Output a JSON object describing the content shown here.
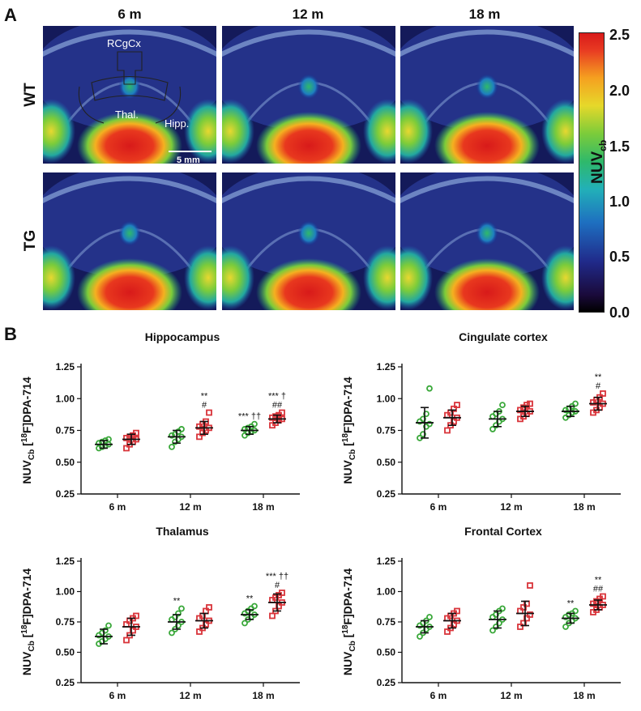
{
  "panel_a": {
    "letter": "A",
    "columns": [
      "6 m",
      "12 m",
      "18 m"
    ],
    "rows": [
      "WT",
      "TG"
    ],
    "annotations": {
      "region_top": "RCgCx",
      "region_left": "Thal.",
      "region_right": "Hipp.",
      "scale": "5 mm"
    },
    "colorbar": {
      "label": "NUV",
      "label_sub": "cb",
      "ticks": [
        "2.5",
        "2.0",
        "1.5",
        "1.0",
        "0.5",
        "0.0"
      ]
    }
  },
  "panel_b": {
    "letter": "B"
  },
  "colors": {
    "wt": "#3aa83a",
    "tg": "#d9343a"
  },
  "chart_data": [
    {
      "type": "scatter",
      "title": "Hippocampus",
      "ylabel": "NUVCb [18F]DPA-714",
      "categories": [
        "6 m",
        "12 m",
        "18 m"
      ],
      "ylim": [
        0.25,
        1.25
      ],
      "yticks": [
        "0.25",
        "0.50",
        "0.75",
        "1.00",
        "1.25"
      ],
      "series": [
        {
          "name": "WT",
          "marker": "circle",
          "means": [
            0.64,
            0.7,
            0.75
          ],
          "sd": [
            0.03,
            0.05,
            0.03
          ],
          "points": [
            [
              0.61,
              0.62,
              0.63,
              0.64,
              0.65,
              0.66,
              0.67,
              0.68
            ],
            [
              0.62,
              0.66,
              0.68,
              0.7,
              0.71,
              0.72,
              0.74,
              0.76
            ],
            [
              0.71,
              0.73,
              0.74,
              0.75,
              0.76,
              0.77,
              0.78,
              0.8
            ]
          ]
        },
        {
          "name": "TG",
          "marker": "square",
          "means": [
            0.68,
            0.77,
            0.84
          ],
          "sd": [
            0.04,
            0.05,
            0.03
          ],
          "points": [
            [
              0.61,
              0.64,
              0.66,
              0.68,
              0.69,
              0.7,
              0.71,
              0.73
            ],
            [
              0.7,
              0.73,
              0.75,
              0.77,
              0.78,
              0.8,
              0.82,
              0.89
            ],
            [
              0.79,
              0.81,
              0.83,
              0.84,
              0.85,
              0.86,
              0.87,
              0.89
            ]
          ]
        }
      ],
      "annotations": [
        {
          "cat": 1,
          "series": 1,
          "text": "**",
          "line": 2
        },
        {
          "cat": 1,
          "series": 1,
          "text": "#",
          "line": 1
        },
        {
          "cat": 2,
          "series": 0,
          "text": "*** ††",
          "line": 1
        },
        {
          "cat": 2,
          "series": 1,
          "text": "*** †",
          "line": 2
        },
        {
          "cat": 2,
          "series": 1,
          "text": "##",
          "line": 1
        }
      ]
    },
    {
      "type": "scatter",
      "title": "Cingulate cortex",
      "ylabel": "NUVCb [18F]DPA-714",
      "categories": [
        "6 m",
        "12 m",
        "18 m"
      ],
      "ylim": [
        0.25,
        1.25
      ],
      "yticks": [
        "0.25",
        "0.50",
        "0.75",
        "1.00",
        "1.25"
      ],
      "series": [
        {
          "name": "WT",
          "marker": "circle",
          "means": [
            0.81,
            0.84,
            0.9
          ],
          "sd": [
            0.12,
            0.06,
            0.04
          ],
          "points": [
            [
              0.69,
              0.72,
              0.78,
              0.8,
              0.82,
              0.84,
              0.88,
              1.08
            ],
            [
              0.76,
              0.79,
              0.82,
              0.84,
              0.86,
              0.88,
              0.9,
              0.95
            ],
            [
              0.85,
              0.87,
              0.89,
              0.9,
              0.91,
              0.92,
              0.94,
              0.96
            ]
          ]
        },
        {
          "name": "TG",
          "marker": "square",
          "means": [
            0.85,
            0.9,
            0.96
          ],
          "sd": [
            0.06,
            0.04,
            0.05
          ],
          "points": [
            [
              0.75,
              0.79,
              0.82,
              0.85,
              0.87,
              0.89,
              0.92,
              0.95
            ],
            [
              0.84,
              0.86,
              0.88,
              0.9,
              0.91,
              0.93,
              0.95,
              0.96
            ],
            [
              0.89,
              0.91,
              0.93,
              0.96,
              0.97,
              0.99,
              1.01,
              1.04
            ]
          ]
        }
      ],
      "annotations": [
        {
          "cat": 2,
          "series": 1,
          "text": "**",
          "line": 2
        },
        {
          "cat": 2,
          "series": 1,
          "text": "#",
          "line": 1
        }
      ]
    },
    {
      "type": "scatter",
      "title": "Thalamus",
      "ylabel": "NUVCb [18F]DPA-714",
      "categories": [
        "6 m",
        "12 m",
        "18 m"
      ],
      "ylim": [
        0.25,
        1.25
      ],
      "yticks": [
        "0.25",
        "0.50",
        "0.75",
        "1.00",
        "1.25"
      ],
      "series": [
        {
          "name": "WT",
          "marker": "circle",
          "means": [
            0.63,
            0.75,
            0.81
          ],
          "sd": [
            0.06,
            0.06,
            0.04
          ],
          "points": [
            [
              0.57,
              0.59,
              0.61,
              0.63,
              0.64,
              0.66,
              0.68,
              0.72
            ],
            [
              0.66,
              0.69,
              0.72,
              0.75,
              0.77,
              0.79,
              0.82,
              0.86
            ],
            [
              0.74,
              0.77,
              0.79,
              0.81,
              0.82,
              0.84,
              0.86,
              0.88
            ]
          ]
        },
        {
          "name": "TG",
          "marker": "square",
          "means": [
            0.71,
            0.76,
            0.91
          ],
          "sd": [
            0.07,
            0.06,
            0.07
          ],
          "points": [
            [
              0.6,
              0.64,
              0.68,
              0.71,
              0.73,
              0.76,
              0.78,
              0.8
            ],
            [
              0.67,
              0.7,
              0.73,
              0.76,
              0.78,
              0.8,
              0.84,
              0.87
            ],
            [
              0.8,
              0.84,
              0.88,
              0.91,
              0.93,
              0.95,
              0.97,
              0.99
            ]
          ]
        }
      ],
      "annotations": [
        {
          "cat": 1,
          "series": 0,
          "text": "**",
          "line": 1
        },
        {
          "cat": 2,
          "series": 0,
          "text": "**",
          "line": 1
        },
        {
          "cat": 2,
          "series": 1,
          "text": "*** ††",
          "line": 2
        },
        {
          "cat": 2,
          "series": 1,
          "text": "#",
          "line": 1
        }
      ]
    },
    {
      "type": "scatter",
      "title": "Frontal Cortex",
      "ylabel": "NUVCb [18F]DPA-714",
      "categories": [
        "6 m",
        "12 m",
        "18 m"
      ],
      "ylim": [
        0.25,
        1.25
      ],
      "yticks": [
        "0.25",
        "0.50",
        "0.75",
        "1.00",
        "1.25"
      ],
      "series": [
        {
          "name": "WT",
          "marker": "circle",
          "means": [
            0.71,
            0.77,
            0.78
          ],
          "sd": [
            0.05,
            0.07,
            0.04
          ],
          "points": [
            [
              0.63,
              0.66,
              0.69,
              0.71,
              0.72,
              0.74,
              0.76,
              0.79
            ],
            [
              0.68,
              0.71,
              0.74,
              0.77,
              0.79,
              0.81,
              0.84,
              0.86
            ],
            [
              0.71,
              0.74,
              0.76,
              0.78,
              0.79,
              0.81,
              0.82,
              0.84
            ]
          ]
        },
        {
          "name": "TG",
          "marker": "square",
          "means": [
            0.76,
            0.82,
            0.89
          ],
          "sd": [
            0.06,
            0.1,
            0.04
          ],
          "points": [
            [
              0.67,
              0.7,
              0.73,
              0.76,
              0.78,
              0.8,
              0.82,
              0.84
            ],
            [
              0.71,
              0.74,
              0.78,
              0.81,
              0.84,
              0.87,
              0.9,
              1.05
            ],
            [
              0.83,
              0.85,
              0.87,
              0.89,
              0.9,
              0.92,
              0.94,
              0.96
            ]
          ]
        }
      ],
      "annotations": [
        {
          "cat": 2,
          "series": 0,
          "text": "**",
          "line": 1
        },
        {
          "cat": 2,
          "series": 1,
          "text": "**",
          "line": 2
        },
        {
          "cat": 2,
          "series": 1,
          "text": "##",
          "line": 1
        }
      ]
    }
  ]
}
